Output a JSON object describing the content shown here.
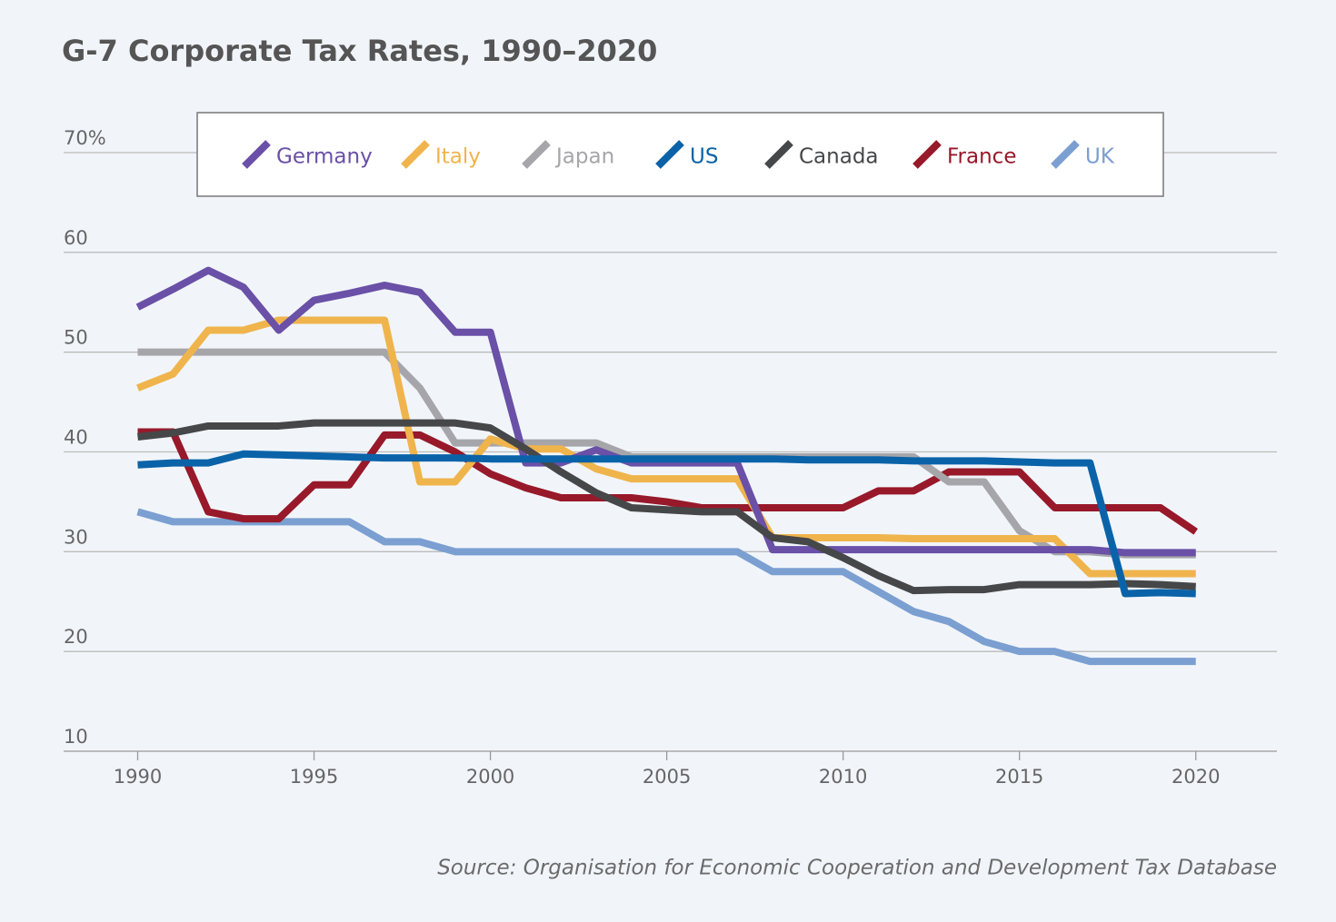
{
  "chart_data": {
    "type": "line",
    "title": "G-7 Corporate Tax Rates, 1990–2020",
    "source": "Source: Organisation for Economic Cooperation and Development Tax Database",
    "x": [
      1990,
      1991,
      1992,
      1993,
      1994,
      1995,
      1996,
      1997,
      1998,
      1999,
      2000,
      2001,
      2002,
      2003,
      2004,
      2005,
      2006,
      2007,
      2008,
      2009,
      2010,
      2011,
      2012,
      2013,
      2014,
      2015,
      2016,
      2017,
      2018,
      2019,
      2020
    ],
    "xlim": [
      1987.9,
      2022.3
    ],
    "xticks": [
      1990,
      1995,
      2000,
      2005,
      2010,
      2015,
      2020
    ],
    "ylim": [
      10,
      70
    ],
    "yticks": [
      10,
      20,
      30,
      40,
      50,
      60,
      {
        "value": 70,
        "label": "70%"
      }
    ],
    "grid": true,
    "series": [
      {
        "name": "Germany",
        "color": "#6a50a7",
        "values": [
          54.5,
          56.3,
          58.2,
          56.5,
          52.2,
          55.2,
          55.9,
          56.7,
          56.0,
          52.0,
          52.0,
          38.9,
          38.9,
          40.2,
          38.9,
          38.9,
          38.9,
          38.9,
          30.2,
          30.2,
          30.2,
          30.2,
          30.2,
          30.2,
          30.2,
          30.2,
          30.2,
          30.2,
          29.9,
          29.9,
          29.9
        ]
      },
      {
        "name": "Italy",
        "color": "#f0b44c",
        "values": [
          46.4,
          47.8,
          52.2,
          52.2,
          53.2,
          53.2,
          53.2,
          53.2,
          37.0,
          37.0,
          41.3,
          40.3,
          40.3,
          38.3,
          37.3,
          37.3,
          37.3,
          37.3,
          31.4,
          31.4,
          31.4,
          31.4,
          31.3,
          31.3,
          31.3,
          31.3,
          31.3,
          27.8,
          27.8,
          27.8,
          27.8
        ]
      },
      {
        "name": "Japan",
        "color": "#a6a6aa",
        "values": [
          50.0,
          50.0,
          50.0,
          50.0,
          50.0,
          50.0,
          50.0,
          50.0,
          46.4,
          40.9,
          40.9,
          40.9,
          40.9,
          40.9,
          39.5,
          39.5,
          39.5,
          39.5,
          39.5,
          39.5,
          39.5,
          39.5,
          39.5,
          37.0,
          37.0,
          32.1,
          30.0,
          30.0,
          29.7,
          29.7,
          29.7
        ]
      },
      {
        "name": "US",
        "color": "#0a63a8",
        "values": [
          38.7,
          38.9,
          38.9,
          39.8,
          39.7,
          39.6,
          39.5,
          39.4,
          39.4,
          39.4,
          39.3,
          39.3,
          39.3,
          39.3,
          39.3,
          39.3,
          39.3,
          39.3,
          39.3,
          39.2,
          39.2,
          39.2,
          39.1,
          39.1,
          39.1,
          39.0,
          38.9,
          38.9,
          25.8,
          25.9,
          25.8
        ]
      },
      {
        "name": "Canada",
        "color": "#464749",
        "values": [
          41.5,
          41.9,
          42.6,
          42.6,
          42.6,
          42.9,
          42.9,
          42.9,
          42.9,
          42.9,
          42.4,
          40.3,
          38.0,
          35.9,
          34.4,
          34.2,
          34.0,
          34.0,
          31.4,
          31.0,
          29.4,
          27.6,
          26.1,
          26.2,
          26.2,
          26.7,
          26.7,
          26.7,
          26.8,
          26.7,
          26.5
        ]
      },
      {
        "name": "France",
        "color": "#97192a",
        "values": [
          42.0,
          42.0,
          34.0,
          33.3,
          33.3,
          36.7,
          36.7,
          41.7,
          41.7,
          40.0,
          37.8,
          36.4,
          35.4,
          35.4,
          35.4,
          35.0,
          34.4,
          34.4,
          34.4,
          34.4,
          34.4,
          36.1,
          36.1,
          38.0,
          38.0,
          38.0,
          34.4,
          34.4,
          34.4,
          34.4,
          32.0
        ]
      },
      {
        "name": "UK",
        "color": "#7b9fd1",
        "values": [
          34,
          33,
          33,
          33,
          33,
          33,
          33,
          31,
          31,
          30,
          30,
          30,
          30,
          30,
          30,
          30,
          30,
          30,
          28,
          28,
          28,
          26,
          24,
          23,
          21,
          20,
          20,
          19,
          19,
          19,
          19
        ]
      }
    ]
  }
}
